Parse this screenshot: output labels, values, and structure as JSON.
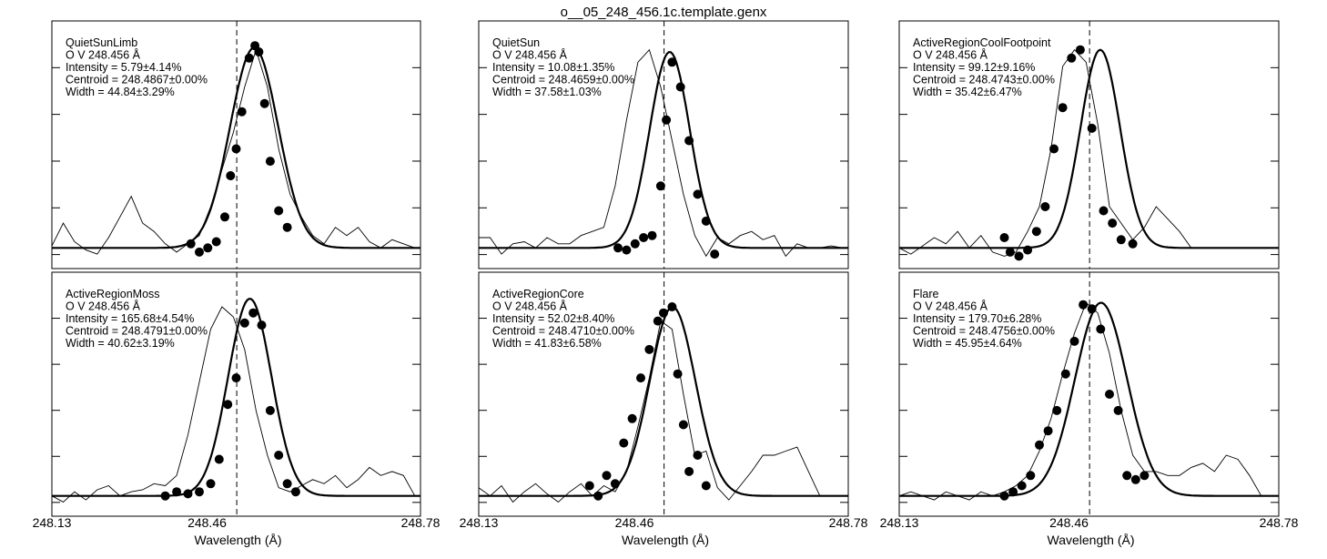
{
  "title": "o__05_248_456.1c.template.genx",
  "chart_data": [
    {
      "type": "line",
      "title": "QuietSunLimb",
      "line_id": "O V 248.456 Å",
      "stats": [
        "Intensity = 5.79±4.14%",
        "Centroid = 248.4867±0.00%",
        "Width = 44.84±3.29%"
      ],
      "xlabel": "Wavelength (Å)",
      "x_ticks": [
        "248.13",
        "248.46",
        "248.78"
      ],
      "xlim": [
        248.13,
        248.78
      ],
      "ylim": [
        -0.1,
        1.1
      ],
      "reference_wavelength": 248.456,
      "fit": {
        "center": 248.4867,
        "fwhm": 0.1,
        "amplitude": 0.97,
        "baseline": 0.0
      },
      "observed": {
        "x": [
          248.13,
          248.15,
          248.17,
          248.19,
          248.21,
          248.23,
          248.25,
          248.27,
          248.29,
          248.31,
          248.33,
          248.35,
          248.37,
          248.39,
          248.41,
          248.43,
          248.45,
          248.47,
          248.49,
          248.51,
          248.53,
          248.55,
          248.57,
          248.59,
          248.61,
          248.63,
          248.65,
          248.67,
          248.69,
          248.71,
          248.73,
          248.75,
          248.77
        ],
        "y": [
          0.01,
          0.12,
          0.03,
          -0.01,
          -0.03,
          0.05,
          0.15,
          0.25,
          0.12,
          0.08,
          0.02,
          -0.02,
          0.02,
          0.06,
          0.2,
          0.38,
          0.56,
          0.78,
          0.96,
          0.78,
          0.48,
          0.26,
          0.15,
          0.06,
          0.02,
          0.1,
          0.06,
          0.1,
          0.03,
          0.0,
          0.04,
          0.02,
          0.0
        ]
      },
      "points": {
        "x": [
          248.375,
          248.39,
          248.405,
          248.42,
          248.435,
          248.445,
          248.455,
          248.465,
          248.478,
          248.488,
          248.495,
          248.505,
          248.515,
          248.53,
          248.545
        ],
        "y": [
          0.02,
          -0.02,
          0.0,
          0.03,
          0.15,
          0.35,
          0.48,
          0.66,
          0.92,
          0.98,
          0.95,
          0.7,
          0.42,
          0.18,
          0.1
        ]
      }
    },
    {
      "type": "line",
      "title": "QuietSun",
      "line_id": "O V 248.456 Å",
      "stats": [
        "Intensity = 10.08±1.35%",
        "Centroid = 248.4659±0.00%",
        "Width = 37.58±1.03%"
      ],
      "xlabel": "Wavelength (Å)",
      "x_ticks": [
        "248.13",
        "248.46",
        "248.78"
      ],
      "xlim": [
        248.13,
        248.78
      ],
      "ylim": [
        -0.1,
        1.1
      ],
      "reference_wavelength": 248.456,
      "fit": {
        "center": 248.4659,
        "fwhm": 0.083,
        "amplitude": 0.95,
        "baseline": 0.0
      },
      "observed": {
        "x": [
          248.13,
          248.15,
          248.17,
          248.19,
          248.21,
          248.23,
          248.25,
          248.27,
          248.29,
          248.31,
          248.33,
          248.35,
          248.37,
          248.39,
          248.41,
          248.43,
          248.45,
          248.47,
          248.49,
          248.51,
          248.53,
          248.55,
          248.57,
          248.59,
          248.61,
          248.63,
          248.65,
          248.67,
          248.69,
          248.71,
          248.73,
          248.75,
          248.77
        ],
        "y": [
          0.05,
          0.05,
          -0.03,
          0.02,
          0.03,
          0.0,
          0.05,
          0.02,
          0.02,
          0.06,
          0.08,
          0.1,
          0.3,
          0.62,
          0.9,
          0.96,
          0.78,
          0.52,
          0.26,
          0.06,
          -0.04,
          0.05,
          0.02,
          0.06,
          0.08,
          0.04,
          0.06,
          -0.04,
          0.02,
          0.0,
          0.0,
          0.01,
          0.0
        ]
      },
      "points": {
        "x": [
          248.375,
          248.39,
          248.405,
          248.42,
          248.435,
          248.45,
          248.46,
          248.47,
          248.485,
          248.5,
          248.515,
          248.53,
          248.545
        ],
        "y": [
          0.0,
          -0.01,
          0.02,
          0.05,
          0.06,
          0.3,
          0.62,
          0.9,
          0.78,
          0.52,
          0.26,
          0.13,
          -0.03
        ]
      }
    },
    {
      "type": "line",
      "title": "ActiveRegionCoolFootpoint",
      "line_id": "O V 248.456 Å",
      "stats": [
        "Intensity = 99.12±9.16%",
        "Centroid = 248.4743±0.00%",
        "Width = 35.42±6.47%"
      ],
      "xlabel": "Wavelength (Å)",
      "x_ticks": [
        "248.13",
        "248.46",
        "248.78"
      ],
      "xlim": [
        248.13,
        248.78
      ],
      "ylim": [
        -0.1,
        1.1
      ],
      "reference_wavelength": 248.456,
      "fit": {
        "center": 248.4743,
        "fwhm": 0.08,
        "amplitude": 0.96,
        "baseline": 0.0
      },
      "observed": {
        "x": [
          248.13,
          248.15,
          248.17,
          248.19,
          248.21,
          248.23,
          248.25,
          248.27,
          248.29,
          248.31,
          248.33,
          248.35,
          248.37,
          248.39,
          248.41,
          248.43,
          248.45,
          248.47,
          248.49,
          248.51,
          248.53,
          248.55,
          248.57,
          248.59,
          248.61,
          248.63,
          248.65,
          248.67,
          248.69,
          248.71,
          248.73,
          248.75,
          248.77
        ],
        "y": [
          0.0,
          -0.03,
          0.01,
          0.05,
          0.02,
          0.08,
          0.0,
          0.06,
          -0.02,
          -0.04,
          -0.02,
          0.08,
          0.2,
          0.48,
          0.88,
          0.96,
          0.9,
          0.6,
          0.2,
          0.12,
          0.04,
          0.1,
          0.2,
          0.14,
          0.08,
          0.0,
          0.0,
          0.0,
          0.0,
          0.0,
          0.0,
          0.0,
          0.0
        ]
      },
      "points": {
        "x": [
          248.31,
          248.32,
          248.335,
          248.35,
          248.365,
          248.38,
          248.395,
          248.41,
          248.425,
          248.44,
          248.46,
          248.48,
          248.495,
          248.51,
          248.53
        ],
        "y": [
          0.05,
          -0.02,
          -0.04,
          -0.01,
          0.08,
          0.2,
          0.48,
          0.68,
          0.92,
          0.96,
          0.58,
          0.18,
          0.12,
          0.04,
          0.02
        ]
      }
    },
    {
      "type": "line",
      "title": "ActiveRegionMoss",
      "line_id": "O V 248.456 Å",
      "stats": [
        "Intensity = 165.68±4.54%",
        "Centroid = 248.4791±0.00%",
        "Width = 40.62±3.19%"
      ],
      "xlabel": "Wavelength (Å)",
      "x_ticks": [
        "248.13",
        "248.46",
        "248.78"
      ],
      "xlim": [
        248.13,
        248.78
      ],
      "ylim": [
        -0.1,
        1.1
      ],
      "reference_wavelength": 248.456,
      "fit": {
        "center": 248.4791,
        "fwhm": 0.09,
        "amplitude": 0.97,
        "baseline": 0.0
      },
      "observed": {
        "x": [
          248.13,
          248.15,
          248.17,
          248.19,
          248.21,
          248.23,
          248.25,
          248.27,
          248.29,
          248.31,
          248.33,
          248.35,
          248.37,
          248.39,
          248.41,
          248.43,
          248.45,
          248.47,
          248.49,
          248.51,
          248.53,
          248.55,
          248.57,
          248.59,
          248.61,
          248.63,
          248.65,
          248.67,
          248.69,
          248.71,
          248.73,
          248.75,
          248.77
        ],
        "y": [
          0.0,
          -0.03,
          0.02,
          -0.02,
          0.03,
          0.05,
          0.0,
          0.02,
          0.03,
          0.06,
          0.05,
          0.1,
          0.3,
          0.56,
          0.82,
          0.93,
          0.88,
          0.72,
          0.42,
          0.2,
          0.04,
          0.02,
          0.05,
          0.08,
          0.06,
          0.1,
          0.04,
          0.08,
          0.14,
          0.1,
          0.12,
          0.1,
          0.0
        ]
      },
      "points": {
        "x": [
          248.33,
          248.35,
          248.37,
          248.39,
          248.41,
          248.425,
          248.44,
          248.455,
          248.47,
          248.485,
          248.5,
          248.515,
          248.53,
          248.545,
          248.56
        ],
        "y": [
          0.0,
          0.02,
          0.01,
          0.02,
          0.06,
          0.18,
          0.45,
          0.58,
          0.85,
          0.9,
          0.84,
          0.42,
          0.2,
          0.06,
          0.02
        ]
      }
    },
    {
      "type": "line",
      "title": "ActiveRegionCore",
      "line_id": "O V 248.456 Å",
      "stats": [
        "Intensity = 52.02±8.40%",
        "Centroid = 248.4710±0.00%",
        "Width = 41.83±6.58%"
      ],
      "xlabel": "Wavelength (Å)",
      "x_ticks": [
        "248.13",
        "248.46",
        "248.78"
      ],
      "xlim": [
        248.13,
        248.78
      ],
      "ylim": [
        -0.1,
        1.1
      ],
      "reference_wavelength": 248.456,
      "fit": {
        "center": 248.471,
        "fwhm": 0.095,
        "amplitude": 0.93,
        "baseline": 0.0
      },
      "observed": {
        "x": [
          248.13,
          248.15,
          248.17,
          248.19,
          248.21,
          248.23,
          248.25,
          248.27,
          248.29,
          248.31,
          248.33,
          248.35,
          248.37,
          248.39,
          248.41,
          248.43,
          248.45,
          248.47,
          248.49,
          248.51,
          248.53,
          248.55,
          248.57,
          248.59,
          248.61,
          248.63,
          248.65,
          248.67,
          248.69,
          248.71,
          248.73,
          248.75,
          248.77
        ],
        "y": [
          0.04,
          0.0,
          0.05,
          -0.03,
          0.02,
          0.06,
          0.01,
          -0.03,
          0.02,
          0.06,
          0.0,
          0.05,
          0.02,
          0.12,
          0.34,
          0.58,
          0.86,
          0.82,
          0.5,
          0.2,
          0.22,
          0.04,
          -0.02,
          0.05,
          0.12,
          0.2,
          0.2,
          0.22,
          0.24,
          0.12,
          0.0,
          0.0,
          0.0
        ]
      },
      "points": {
        "x": [
          248.325,
          248.34,
          248.355,
          248.37,
          248.385,
          248.4,
          248.415,
          248.43,
          248.445,
          248.455,
          248.47,
          248.48,
          248.49,
          248.5,
          248.515,
          248.53
        ],
        "y": [
          0.05,
          0.0,
          0.1,
          0.06,
          0.26,
          0.38,
          0.58,
          0.72,
          0.86,
          0.9,
          0.93,
          0.6,
          0.35,
          0.12,
          0.2,
          0.05
        ]
      }
    },
    {
      "type": "line",
      "title": "Flare",
      "line_id": "O V 248.456 Å",
      "stats": [
        "Intensity = 179.70±6.28%",
        "Centroid = 248.4756±0.00%",
        "Width = 45.95±4.64%"
      ],
      "xlabel": "Wavelength (Å)",
      "x_ticks": [
        "248.13",
        "248.46",
        "248.78"
      ],
      "xlim": [
        248.13,
        248.78
      ],
      "ylim": [
        -0.1,
        1.1
      ],
      "reference_wavelength": 248.456,
      "fit": {
        "center": 248.4756,
        "fwhm": 0.105,
        "amplitude": 0.95,
        "baseline": 0.0
      },
      "observed": {
        "x": [
          248.13,
          248.15,
          248.17,
          248.19,
          248.21,
          248.23,
          248.25,
          248.27,
          248.29,
          248.31,
          248.33,
          248.35,
          248.37,
          248.39,
          248.41,
          248.43,
          248.45,
          248.47,
          248.49,
          248.51,
          248.53,
          248.55,
          248.57,
          248.59,
          248.61,
          248.63,
          248.65,
          248.67,
          248.69,
          248.71,
          248.73,
          248.75,
          248.77
        ],
        "y": [
          0.0,
          0.02,
          0.0,
          -0.02,
          0.02,
          0.0,
          -0.02,
          0.02,
          0.0,
          0.02,
          0.05,
          0.1,
          0.22,
          0.38,
          0.6,
          0.8,
          0.95,
          0.9,
          0.7,
          0.42,
          0.2,
          0.12,
          0.12,
          0.1,
          0.1,
          0.14,
          0.16,
          0.12,
          0.2,
          0.18,
          0.1,
          0.0,
          0.0
        ]
      },
      "points": {
        "x": [
          248.31,
          248.325,
          248.34,
          248.355,
          248.37,
          248.385,
          248.4,
          248.415,
          248.43,
          248.445,
          248.46,
          248.475,
          248.49,
          248.505,
          248.52,
          248.535,
          248.55
        ],
        "y": [
          0.0,
          0.02,
          0.05,
          0.1,
          0.25,
          0.32,
          0.42,
          0.6,
          0.76,
          0.94,
          0.92,
          0.82,
          0.5,
          0.42,
          0.1,
          0.08,
          0.1
        ]
      }
    }
  ]
}
